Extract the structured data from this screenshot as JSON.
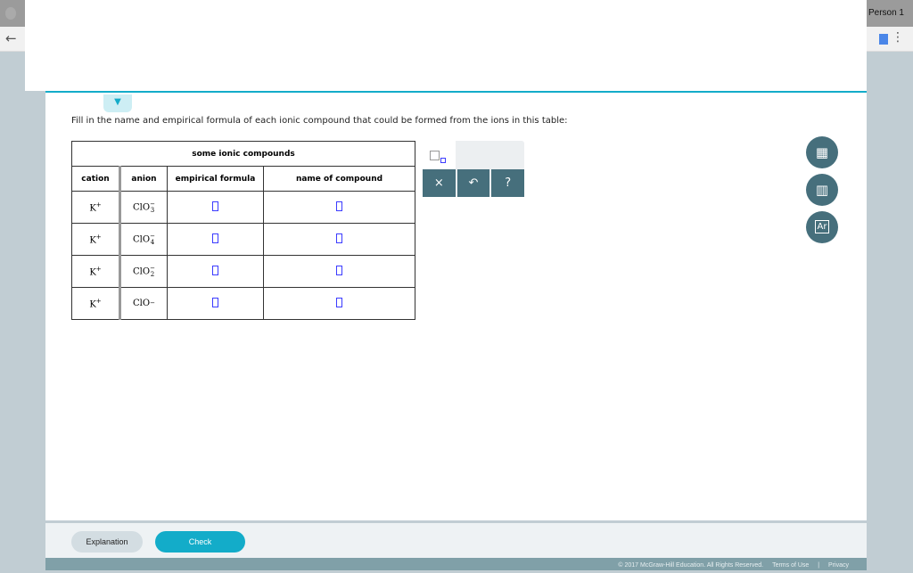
{
  "browser": {
    "profile": "Person 1",
    "back_icon": "arrow-left-icon"
  },
  "question": {
    "prompt": "Fill in the name and empirical formula of each ionic compound that could be formed from the ions in this table:"
  },
  "table": {
    "title": "some ionic compounds",
    "headers": [
      "cation",
      "anion",
      "empirical formula",
      "name of compound"
    ],
    "rows": [
      {
        "cation": "K",
        "cation_charge": "+",
        "anion": "ClO",
        "anion_sub": "3",
        "anion_charge": "−"
      },
      {
        "cation": "K",
        "cation_charge": "+",
        "anion": "ClO",
        "anion_sub": "4",
        "anion_charge": "−"
      },
      {
        "cation": "K",
        "cation_charge": "+",
        "anion": "ClO",
        "anion_sub": "2",
        "anion_charge": "−"
      },
      {
        "cation": "K",
        "cation_charge": "+",
        "anion": "ClO",
        "anion_sub": "",
        "anion_charge": "−"
      }
    ]
  },
  "toolbar": {
    "clear": "×",
    "undo": "↶",
    "help": "?"
  },
  "side_tools": {
    "calculator": "calculator-icon",
    "chart": "bar-chart-icon",
    "periodic": "periodic-table-icon",
    "periodic_label": "Ar"
  },
  "footer": {
    "explanation": "Explanation",
    "check": "Check",
    "copyright": "© 2017 McGraw-Hill Education. All Rights Reserved.",
    "terms": "Terms of Use",
    "separator": "|",
    "privacy": "Privacy"
  }
}
